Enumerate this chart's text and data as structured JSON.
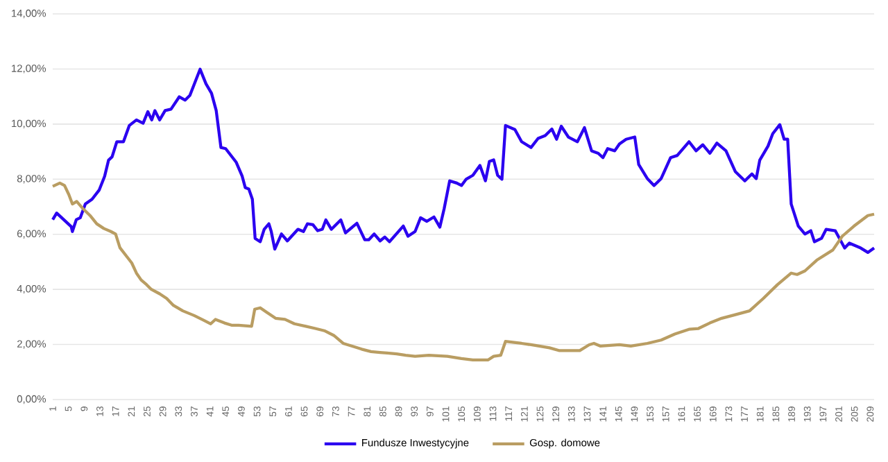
{
  "chart_data": {
    "type": "line",
    "xlim": [
      1,
      210
    ],
    "xticks": [
      1,
      5,
      9,
      13,
      17,
      21,
      25,
      29,
      33,
      37,
      41,
      45,
      49,
      53,
      57,
      61,
      65,
      69,
      73,
      77,
      81,
      85,
      89,
      93,
      97,
      101,
      105,
      109,
      113,
      117,
      121,
      125,
      129,
      133,
      137,
      141,
      145,
      149,
      153,
      157,
      161,
      165,
      169,
      173,
      177,
      181,
      185,
      189,
      193,
      197,
      201,
      205,
      209
    ],
    "ylim": [
      0,
      14
    ],
    "yticks": [
      {
        "value": 0,
        "label": "0,00%"
      },
      {
        "value": 2,
        "label": "2,00%"
      },
      {
        "value": 4,
        "label": "4,00%"
      },
      {
        "value": 6,
        "label": "6,00%"
      },
      {
        "value": 8,
        "label": "8,00%"
      },
      {
        "value": 10,
        "label": "10,00%"
      },
      {
        "value": 12,
        "label": "12,00%"
      },
      {
        "value": 14,
        "label": "14,00%"
      }
    ],
    "grid": "y",
    "legend": "bottom",
    "series": [
      {
        "name": "Fundusze Inwestycyjne",
        "color": "#2b00f0",
        "x": [
          1,
          2,
          5.7,
          6,
          7,
          8,
          9.3,
          11,
          12.8,
          14.2,
          15.2,
          16.1,
          17.3,
          19,
          20.5,
          22.3,
          24,
          25.2,
          26.2,
          27,
          28.2,
          29.6,
          31.1,
          33.2,
          34.7,
          35.9,
          38.5,
          40,
          41.4,
          42.6,
          43.8,
          45,
          47.7,
          49.2,
          50,
          50.9,
          51.8,
          52.5,
          53.8,
          54.8,
          56,
          56.6,
          57.5,
          59.2,
          60.7,
          63.4,
          64.8,
          65.8,
          67.2,
          68.4,
          69.6,
          70.5,
          71.9,
          74.3,
          75.5,
          78.4,
          80.4,
          81.4,
          82.8,
          84.3,
          85.5,
          86.7,
          90.2,
          91.4,
          93.2,
          94.6,
          96.2,
          98,
          99.5,
          100.6,
          102,
          103.8,
          105,
          106.2,
          107.9,
          109.7,
          111.1,
          112.1,
          113.2,
          114.2,
          115.3,
          116.2,
          118.6,
          120.3,
          122.7,
          124.5,
          126.3,
          128,
          129.2,
          130.4,
          132.2,
          134.5,
          136.3,
          138.1,
          139.8,
          141,
          142.2,
          144,
          145.2,
          146.9,
          149.1,
          150.1,
          152.3,
          154,
          155.8,
          158.2,
          159.9,
          162.9,
          164.7,
          166.4,
          168.2,
          170,
          172.3,
          174.7,
          177.1,
          178.9,
          180,
          180.9,
          183,
          184.2,
          186,
          187.1,
          188,
          188.9,
          190.7,
          192.4,
          193.9,
          194.8,
          196.6,
          197.8,
          200.1,
          202.5,
          203.7,
          206.6,
          208.4,
          210
        ],
        "values": [
          6.53,
          6.77,
          6.28,
          6.1,
          6.53,
          6.6,
          7.1,
          7.27,
          7.6,
          8.1,
          8.69,
          8.81,
          9.36,
          9.36,
          9.95,
          10.15,
          10.03,
          10.45,
          10.15,
          10.49,
          10.15,
          10.49,
          10.54,
          10.99,
          10.87,
          11.04,
          11.99,
          11.46,
          11.12,
          10.49,
          9.15,
          9.11,
          8.61,
          8.11,
          7.69,
          7.64,
          7.27,
          5.85,
          5.73,
          6.18,
          6.38,
          6.1,
          5.46,
          6.01,
          5.76,
          6.18,
          6.1,
          6.38,
          6.35,
          6.13,
          6.18,
          6.52,
          6.18,
          6.52,
          6.05,
          6.4,
          5.8,
          5.8,
          6.01,
          5.76,
          5.9,
          5.73,
          6.3,
          5.93,
          6.1,
          6.6,
          6.47,
          6.63,
          6.26,
          6.93,
          7.94,
          7.86,
          7.77,
          8.0,
          8.14,
          8.5,
          7.94,
          8.64,
          8.7,
          8.14,
          8.0,
          9.95,
          9.8,
          9.36,
          9.15,
          9.48,
          9.58,
          9.82,
          9.45,
          9.92,
          9.53,
          9.36,
          9.87,
          9.03,
          8.94,
          8.78,
          9.11,
          9.03,
          9.28,
          9.45,
          9.53,
          8.53,
          8.02,
          7.77,
          8.02,
          8.78,
          8.86,
          9.36,
          9.03,
          9.25,
          8.94,
          9.31,
          9.03,
          8.27,
          7.94,
          8.19,
          8.02,
          8.69,
          9.2,
          9.65,
          9.98,
          9.45,
          9.45,
          7.1,
          6.3,
          6.01,
          6.13,
          5.73,
          5.85,
          6.18,
          6.13,
          5.5,
          5.68,
          5.5,
          5.34,
          5.5
        ]
      },
      {
        "name": "Gosp. domowe",
        "color": "#b99d62",
        "x": [
          1,
          2.8,
          4,
          5.1,
          6,
          7.1,
          8.7,
          10.5,
          12.2,
          14,
          15.8,
          17,
          18.1,
          19.9,
          21.1,
          22.3,
          23.5,
          24.9,
          26.1,
          28.2,
          30,
          31.7,
          34.1,
          37,
          39.4,
          41.2,
          42.4,
          44.7,
          46.5,
          48.3,
          51.6,
          52.4,
          53.8,
          55.4,
          57.7,
          60.1,
          62.5,
          65.4,
          67.8,
          70.1,
          72.5,
          74.9,
          77.2,
          79.6,
          82,
          84.3,
          86.1,
          88.5,
          90.8,
          93.2,
          96.7,
          101.4,
          105,
          107.9,
          111.8,
          113.2,
          115,
          116.2,
          120.3,
          122.7,
          127.4,
          129.8,
          135.1,
          137.5,
          138.7,
          140.4,
          145.2,
          148.1,
          152.3,
          155.8,
          159.3,
          162.9,
          165.3,
          168.2,
          171.2,
          174.7,
          178.3,
          181.8,
          185.4,
          188.9,
          190.4,
          192.4,
          195.4,
          199.5,
          201.9,
          204.9,
          208.4,
          210
        ],
        "values": [
          7.74,
          7.86,
          7.77,
          7.44,
          7.1,
          7.19,
          6.93,
          6.68,
          6.38,
          6.21,
          6.1,
          6.01,
          5.51,
          5.18,
          4.96,
          4.59,
          4.34,
          4.17,
          4.0,
          3.84,
          3.67,
          3.42,
          3.22,
          3.05,
          2.88,
          2.75,
          2.91,
          2.78,
          2.7,
          2.7,
          2.66,
          3.28,
          3.33,
          3.17,
          2.95,
          2.91,
          2.75,
          2.66,
          2.58,
          2.5,
          2.33,
          2.04,
          1.94,
          1.83,
          1.74,
          1.71,
          1.69,
          1.66,
          1.61,
          1.57,
          1.61,
          1.57,
          1.49,
          1.44,
          1.44,
          1.57,
          1.61,
          2.11,
          2.04,
          1.99,
          1.88,
          1.78,
          1.78,
          1.99,
          2.04,
          1.94,
          1.99,
          1.94,
          2.04,
          2.16,
          2.38,
          2.55,
          2.58,
          2.78,
          2.95,
          3.08,
          3.22,
          3.67,
          4.17,
          4.59,
          4.54,
          4.67,
          5.06,
          5.43,
          5.93,
          6.3,
          6.68,
          6.73
        ]
      }
    ]
  }
}
